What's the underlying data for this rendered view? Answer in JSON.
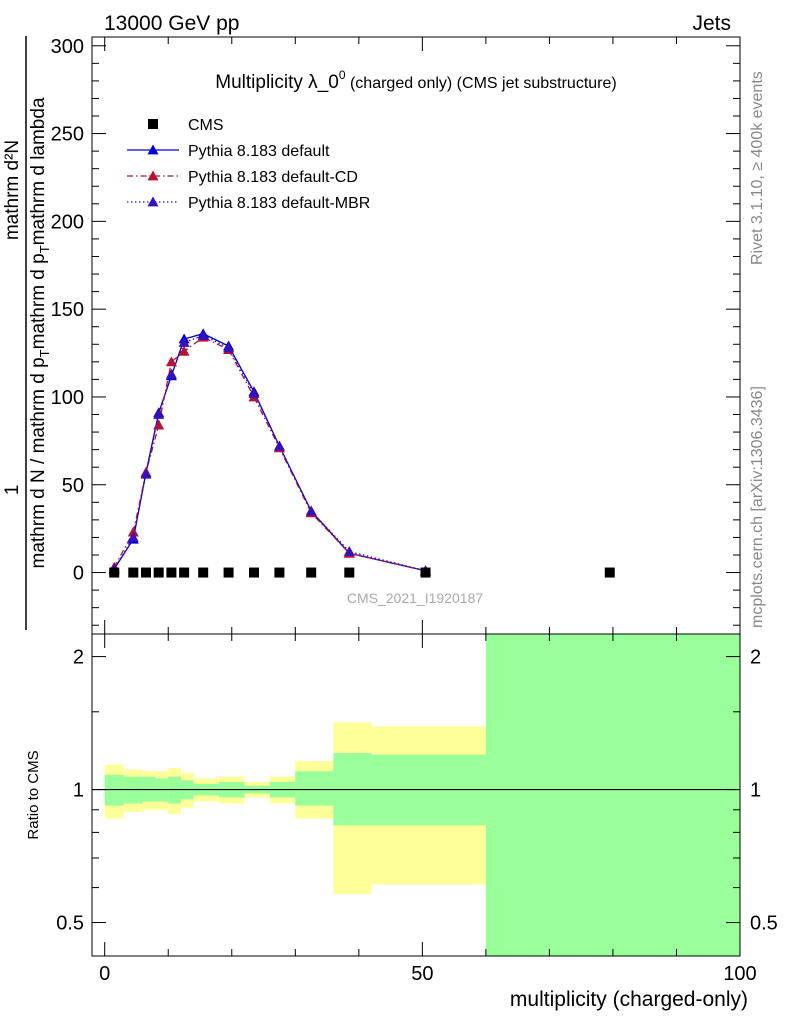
{
  "header": {
    "left_label": "13000 GeV pp",
    "right_label": "Jets",
    "side_top": "Rivet 3.1.10, ≥ 400k events",
    "side_bottom": "mcplots.cern.ch [arXiv:1306.3436]",
    "watermark": "CMS_2021_I1920187"
  },
  "chart_data": [
    {
      "type": "line",
      "title_main": "Multiplicity λ_0",
      "title_sup": "0",
      "title_suffix": " (charged only) (CMS jet substructure)",
      "ylabel_numerator": "1",
      "ylabel_denominator": "mathrm d N / mathrm d p",
      "ylabel_sub": "T",
      "ylabel_mid": "mathrm d p",
      "ylabel_sub2": "T",
      "ylabel_tail": "mathrm d lambda",
      "ylabel_top": "mathrm d²N",
      "ylim": [
        -35,
        305
      ],
      "xlim": [
        -2,
        100
      ],
      "yticks": [
        0,
        50,
        100,
        150,
        200,
        250,
        300
      ],
      "ytick_labels": [
        "0",
        "50",
        "100",
        "150",
        "200",
        "250",
        "300"
      ],
      "legend": [
        {
          "label": "CMS",
          "marker": "square",
          "color": "#000000",
          "line": "none"
        },
        {
          "label": "Pythia 8.183 default",
          "marker": "triangle",
          "color": "#0000dd",
          "line": "solid"
        },
        {
          "label": "Pythia 8.183 default-CD",
          "marker": "triangle",
          "color": "#bb1133",
          "line": "dashdot"
        },
        {
          "label": "Pythia 8.183 default-MBR",
          "marker": "triangle",
          "color": "#3311bb",
          "line": "dotted"
        }
      ],
      "series": [
        {
          "name": "CMS",
          "x": [
            1.5,
            4.5,
            6.5,
            8.5,
            10.5,
            12.5,
            15.5,
            19.5,
            23.5,
            27.5,
            32.5,
            38.5,
            50.5,
            79.5
          ],
          "values": [
            0,
            0,
            0,
            0,
            0,
            0,
            0,
            0,
            0,
            0,
            0,
            0,
            0,
            0
          ]
        },
        {
          "name": "Pythia 8.183 default",
          "x": [
            1.5,
            4.5,
            6.5,
            8.5,
            10.5,
            12.5,
            15.5,
            19.5,
            23.5,
            27.5,
            32.5,
            38.5,
            50.5
          ],
          "values": [
            2,
            19,
            57,
            91,
            112,
            133,
            136,
            129,
            103,
            72,
            35,
            11,
            1
          ]
        },
        {
          "name": "Pythia 8.183 default-CD",
          "x": [
            1.5,
            4.5,
            6.5,
            8.5,
            10.5,
            12.5,
            15.5,
            19.5,
            23.5,
            27.5,
            32.5,
            38.5,
            50.5
          ],
          "values": [
            3,
            23,
            57,
            84,
            120,
            126,
            134,
            127,
            100,
            71,
            34,
            11,
            1
          ]
        },
        {
          "name": "Pythia 8.183 default-MBR",
          "x": [
            1.5,
            4.5,
            6.5,
            8.5,
            10.5,
            12.5,
            15.5,
            19.5,
            23.5,
            27.5,
            32.5,
            38.5,
            50.5
          ],
          "values": [
            2,
            20,
            56,
            90,
            113,
            131,
            135,
            128,
            102,
            72,
            35,
            12,
            1
          ]
        }
      ]
    },
    {
      "type": "area",
      "ylabel": "Ratio to CMS",
      "xlabel": "multiplicity (charged-only)",
      "xlim": [
        -2,
        100
      ],
      "ylim": [
        0.42,
        2.25
      ],
      "xticks": [
        0,
        50,
        100
      ],
      "xtick_labels": [
        "0",
        "50",
        "100"
      ],
      "yticks": [
        0.5,
        1,
        2
      ],
      "ytick_labels": [
        "0.5",
        "1",
        "2"
      ],
      "bins": [
        {
          "x0": 0,
          "x1": 3,
          "green": [
            0.92,
            1.08
          ],
          "yellow": [
            0.86,
            1.14
          ]
        },
        {
          "x0": 3,
          "x1": 6,
          "green": [
            0.93,
            1.07
          ],
          "yellow": [
            0.89,
            1.11
          ]
        },
        {
          "x0": 6,
          "x1": 8,
          "green": [
            0.94,
            1.07
          ],
          "yellow": [
            0.9,
            1.1
          ]
        },
        {
          "x0": 8,
          "x1": 10,
          "green": [
            0.94,
            1.06
          ],
          "yellow": [
            0.9,
            1.1
          ]
        },
        {
          "x0": 10,
          "x1": 12,
          "green": [
            0.93,
            1.07
          ],
          "yellow": [
            0.88,
            1.12
          ]
        },
        {
          "x0": 12,
          "x1": 14,
          "green": [
            0.95,
            1.05
          ],
          "yellow": [
            0.91,
            1.09
          ]
        },
        {
          "x0": 14,
          "x1": 18,
          "green": [
            0.97,
            1.03
          ],
          "yellow": [
            0.94,
            1.06
          ]
        },
        {
          "x0": 18,
          "x1": 22,
          "green": [
            0.96,
            1.04
          ],
          "yellow": [
            0.93,
            1.07
          ]
        },
        {
          "x0": 22,
          "x1": 26,
          "green": [
            0.98,
            1.02
          ],
          "yellow": [
            0.96,
            1.04
          ]
        },
        {
          "x0": 26,
          "x1": 30,
          "green": [
            0.96,
            1.04
          ],
          "yellow": [
            0.93,
            1.07
          ]
        },
        {
          "x0": 30,
          "x1": 36,
          "green": [
            0.92,
            1.1
          ],
          "yellow": [
            0.86,
            1.16
          ]
        },
        {
          "x0": 36,
          "x1": 42,
          "green": [
            0.83,
            1.21
          ],
          "yellow": [
            0.58,
            1.42
          ]
        },
        {
          "x0": 42,
          "x1": 60,
          "green": [
            0.83,
            1.2
          ],
          "yellow": [
            0.61,
            1.39
          ]
        },
        {
          "x0": 60,
          "x1": 100,
          "green": [
            0.0,
            3.0
          ],
          "yellow": [
            0.0,
            3.0
          ]
        }
      ],
      "reference_line": 1
    }
  ]
}
